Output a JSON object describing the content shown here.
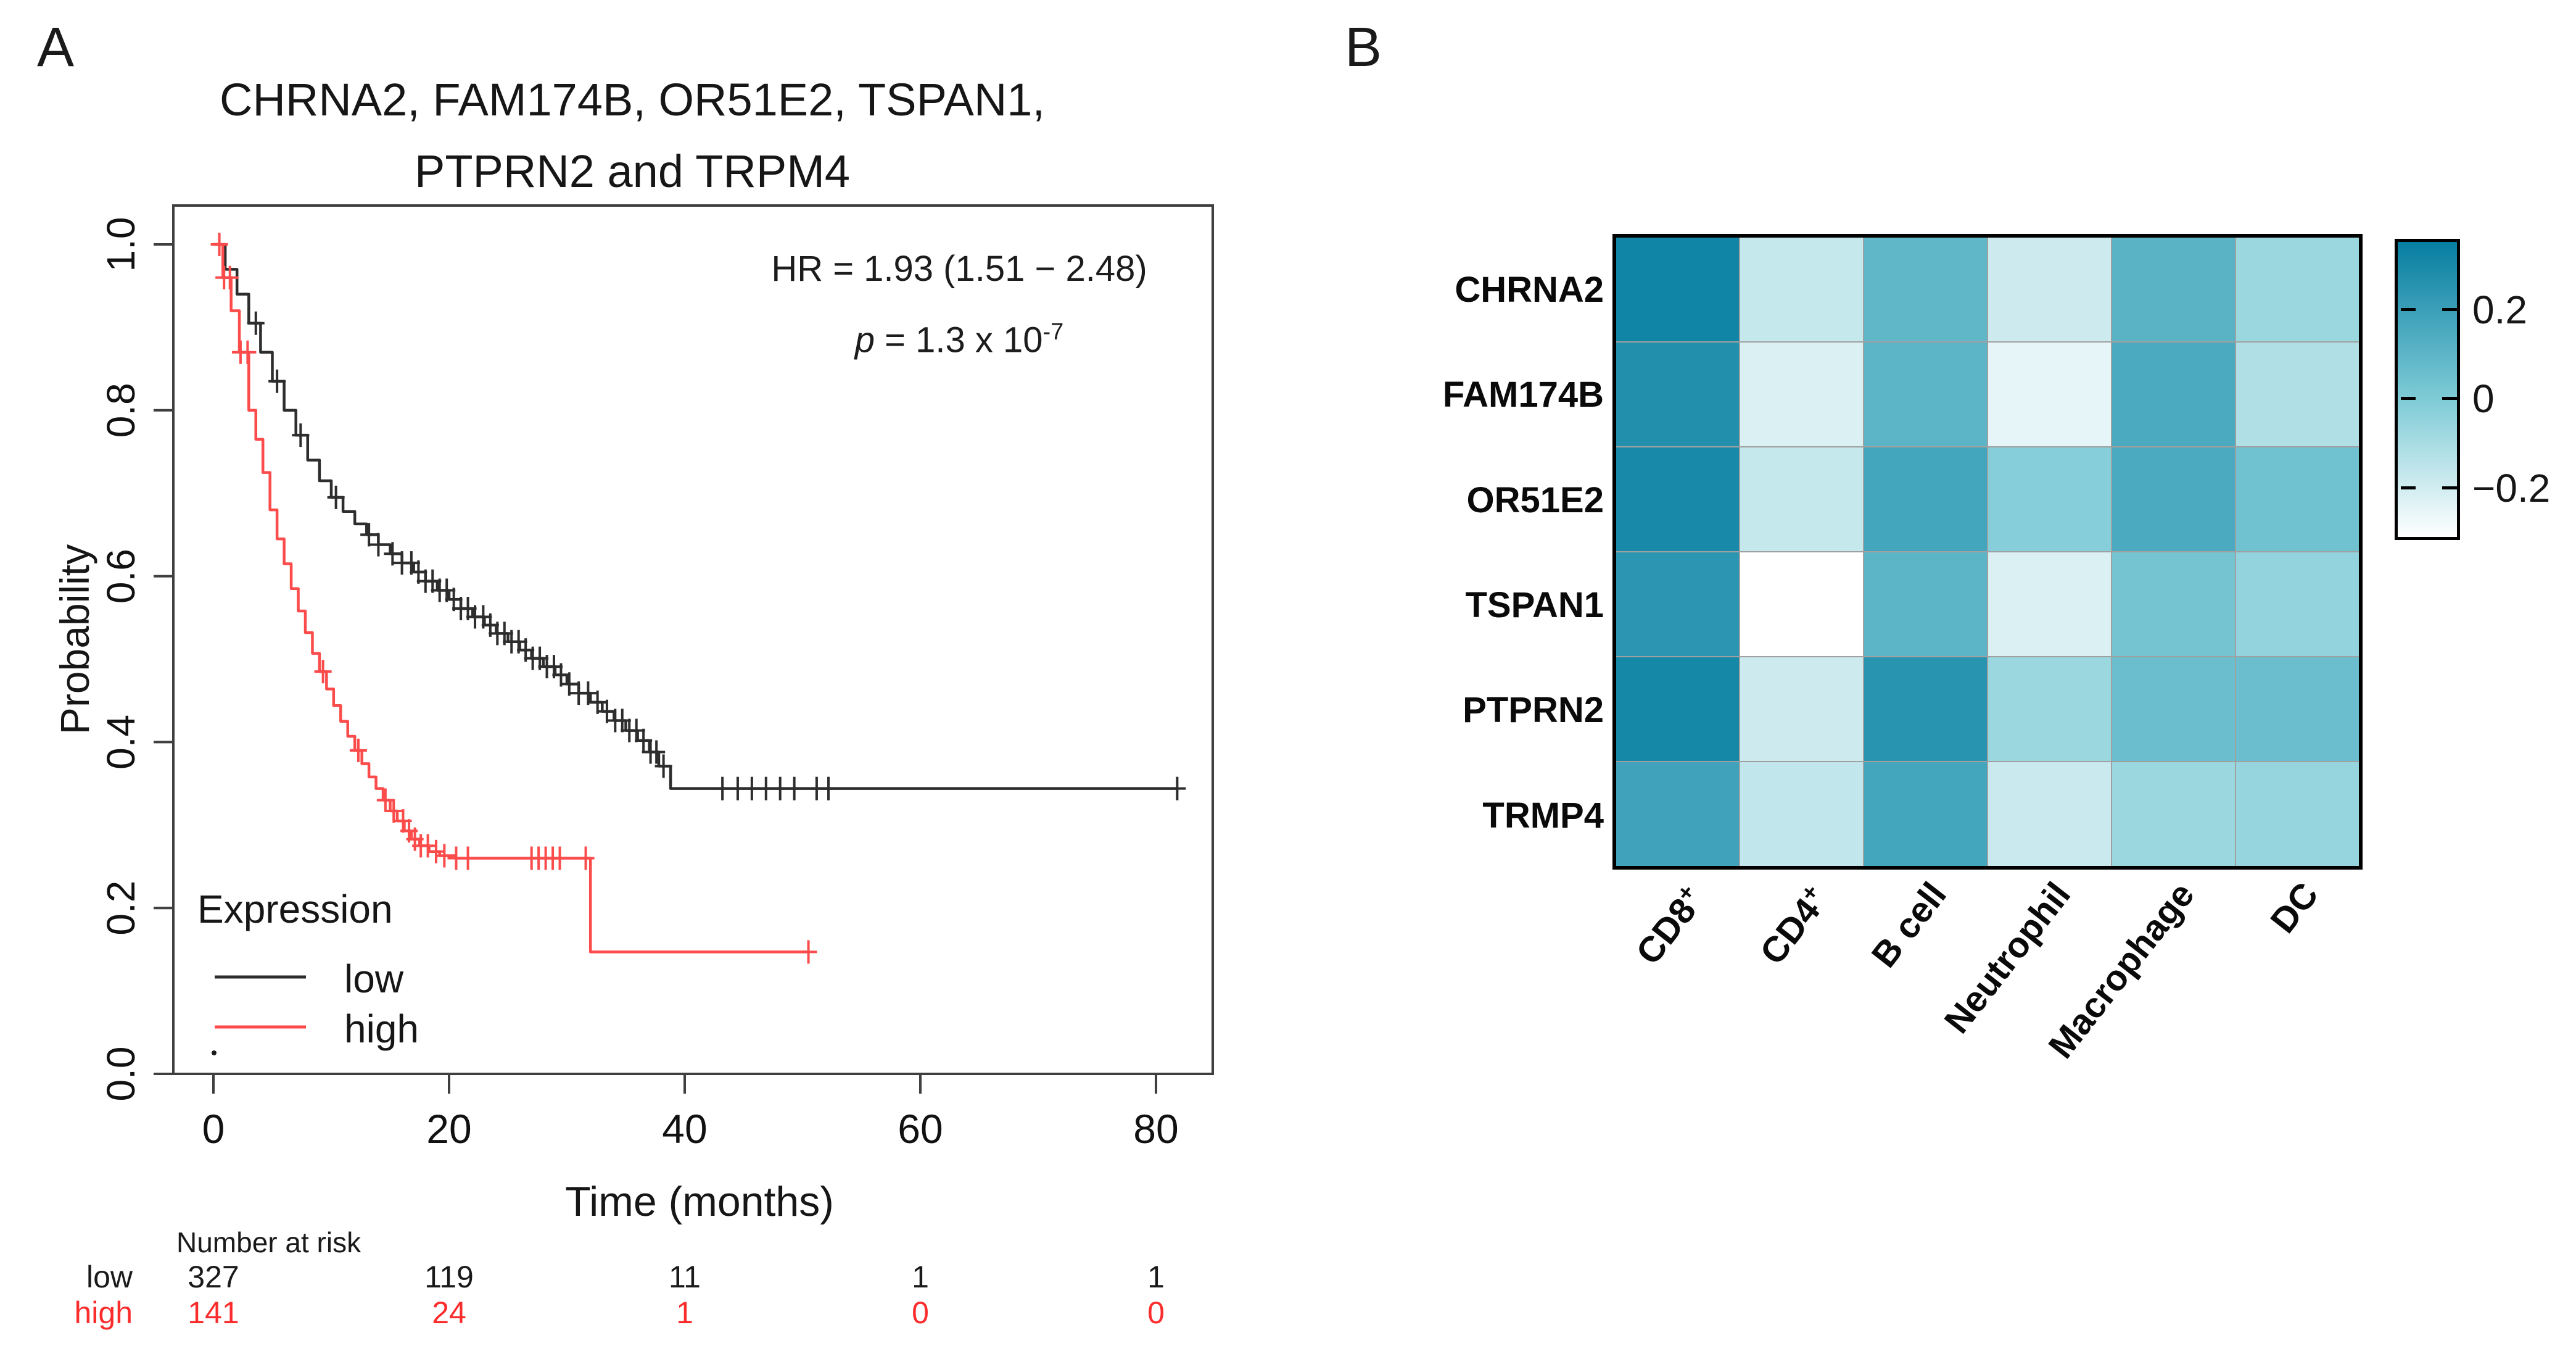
{
  "figure": {
    "panel_a_label": "A",
    "panel_b_label": "B"
  },
  "colors": {
    "curve_low": "#2d2d2d",
    "curve_high": "#fb4b4b",
    "risk_low_text": "#1a1a1a",
    "risk_high_text": "#fa2c2c",
    "axis": "#3f3f3f",
    "text": "#111111",
    "heatmap_grid": "#a0a0a0",
    "heatmap_border": "#000000"
  },
  "panel_a": {
    "title_line1": "CHRNA2, FAM174B, OR51E2, TSPAN1,",
    "title_line2": "PTPRN2 and TRPM4",
    "annotation": {
      "hr": "HR = 1.93 (1.51 − 2.48)",
      "p_label": "p",
      "p_value": " = 1.3 x 10",
      "p_exponent": "-7"
    },
    "ylabel": "Probability",
    "xlabel": "Time (months)",
    "legend": {
      "title": "Expression",
      "items": [
        {
          "label": "low",
          "color": "#2d2d2d"
        },
        {
          "label": "high",
          "color": "#fb4b4b"
        }
      ]
    },
    "risk_table": {
      "title": "Number at risk",
      "rows": [
        {
          "name": "low",
          "color": "#1a1a1a",
          "values": [
            "327",
            "119",
            "11",
            "1",
            "1"
          ]
        },
        {
          "name": "high",
          "color": "#fa2c2c",
          "values": [
            "141",
            "24",
            "1",
            "0",
            "0"
          ]
        }
      ]
    }
  },
  "chart_data": [
    {
      "type": "line",
      "subtype": "kaplan-meier-step",
      "title": "CHRNA2, FAM174B, OR51E2, TSPAN1, PTPRN2 and TRPM4",
      "xlabel": "Time (months)",
      "ylabel": "Probability",
      "xlim": [
        0,
        85
      ],
      "ylim": [
        0,
        1.05
      ],
      "x_ticks": [
        "0",
        "20",
        "40",
        "60",
        "80"
      ],
      "x_tick_values": [
        0,
        20,
        40,
        60,
        80
      ],
      "y_ticks": [
        "1.0",
        "0.8",
        "0.6",
        "0.4",
        "0.2",
        "0.0"
      ],
      "y_tick_values": [
        1.0,
        0.8,
        0.6,
        0.4,
        0.2,
        0.0
      ],
      "grid": false,
      "legend_position": "bottom-left",
      "hr_annotation": "HR = 1.93 (1.51 − 2.48)",
      "p_annotation": "p = 1.3 x 10^-7",
      "series": [
        {
          "name": "low",
          "color": "#2d2d2d",
          "steps": [
            [
              0,
              1
            ],
            [
              1,
              0.97
            ],
            [
              2,
              0.94
            ],
            [
              3,
              0.905
            ],
            [
              4,
              0.87
            ],
            [
              5,
              0.835
            ],
            [
              6,
              0.8
            ],
            [
              7,
              0.77
            ],
            [
              8,
              0.74
            ],
            [
              9,
              0.715
            ],
            [
              10,
              0.695
            ],
            [
              11,
              0.678
            ],
            [
              12,
              0.663
            ],
            [
              13,
              0.65
            ],
            [
              14,
              0.638
            ],
            [
              15,
              0.627
            ],
            [
              16,
              0.616
            ],
            [
              17,
              0.605
            ],
            [
              18,
              0.594
            ],
            [
              19,
              0.583
            ],
            [
              20,
              0.572
            ],
            [
              21,
              0.561
            ],
            [
              22,
              0.551
            ],
            [
              23,
              0.541
            ],
            [
              24,
              0.531
            ],
            [
              25,
              0.521
            ],
            [
              26,
              0.511
            ],
            [
              27,
              0.501
            ],
            [
              28,
              0.491
            ],
            [
              29,
              0.481
            ],
            [
              30,
              0.47
            ],
            [
              31,
              0.459
            ],
            [
              32,
              0.448
            ],
            [
              33,
              0.437
            ],
            [
              34,
              0.426
            ],
            [
              35,
              0.414
            ],
            [
              36,
              0.402
            ],
            [
              37,
              0.388
            ],
            [
              37.8,
              0.371
            ],
            [
              38.8,
              0.344
            ],
            [
              81.8,
              0.344
            ]
          ],
          "censor_times": [
            3.6,
            5.4,
            7.4,
            10.4,
            13.2,
            14.0,
            15.2,
            16.0,
            16.8,
            17.4,
            18.0,
            18.6,
            19.2,
            19.8,
            20.4,
            21.0,
            21.6,
            22.2,
            22.9,
            23.5,
            24.1,
            24.7,
            25.3,
            25.9,
            26.5,
            27.1,
            27.7,
            28.3,
            28.9,
            29.5,
            30.2,
            31.0,
            31.8,
            32.6,
            33.4,
            34.1,
            34.7,
            35.3,
            35.9,
            36.5,
            37.1,
            37.6,
            38.2,
            43.2,
            44.5,
            45.7,
            46.9,
            48.1,
            49.3,
            51.2,
            52.2,
            81.8
          ]
        },
        {
          "name": "high",
          "color": "#fb4b4b",
          "steps": [
            [
              0,
              1
            ],
            [
              0.8,
              0.96
            ],
            [
              1.5,
              0.92
            ],
            [
              2.2,
              0.87
            ],
            [
              3,
              0.8
            ],
            [
              3.6,
              0.765
            ],
            [
              4.2,
              0.725
            ],
            [
              4.8,
              0.68
            ],
            [
              5.4,
              0.645
            ],
            [
              6,
              0.615
            ],
            [
              6.6,
              0.585
            ],
            [
              7.2,
              0.558
            ],
            [
              7.8,
              0.532
            ],
            [
              8.4,
              0.507
            ],
            [
              9,
              0.485
            ],
            [
              9.6,
              0.464
            ],
            [
              10.2,
              0.444
            ],
            [
              10.8,
              0.425
            ],
            [
              11.4,
              0.407
            ],
            [
              12,
              0.39
            ],
            [
              12.6,
              0.374
            ],
            [
              13.2,
              0.358
            ],
            [
              13.8,
              0.344
            ],
            [
              14.4,
              0.33
            ],
            [
              15,
              0.317
            ],
            [
              15.6,
              0.305
            ],
            [
              16.2,
              0.293
            ],
            [
              16.8,
              0.283
            ],
            [
              17.5,
              0.275
            ],
            [
              18.3,
              0.268
            ],
            [
              19.2,
              0.263
            ],
            [
              20.5,
              0.26
            ],
            [
              32,
              0.26
            ],
            [
              32,
              0.147
            ],
            [
              50.5,
              0.147
            ]
          ],
          "censor_times": [
            0.5,
            0.9,
            1.4,
            2.3,
            2.9,
            9.3,
            12.3,
            14.6,
            15.3,
            16.1,
            16.6,
            17.1,
            17.6,
            18.2,
            18.9,
            19.6,
            20.6,
            21.6,
            27.0,
            27.6,
            28.2,
            28.8,
            29.4,
            31.6,
            50.5
          ]
        }
      ],
      "number_at_risk": {
        "title": "Number at risk",
        "times": [
          0,
          20,
          40,
          60,
          80
        ],
        "rows": [
          {
            "name": "low",
            "values": [
              327,
              119,
              11,
              1,
              1
            ]
          },
          {
            "name": "high",
            "values": [
              141,
              24,
              1,
              0,
              0
            ]
          }
        ]
      }
    },
    {
      "type": "heatmap",
      "rows": [
        "CHRNA2",
        "FAM174B",
        "OR51E2",
        "TSPAN1",
        "PTPRN2",
        "TRMP4"
      ],
      "columns": [
        "CD8+",
        "CD4+",
        "B cell",
        "Neutrophil",
        "Macrophage",
        "DC"
      ],
      "values": [
        [
          0.32,
          -0.17,
          0.09,
          -0.19,
          0.11,
          -0.07
        ],
        [
          0.27,
          -0.22,
          0.1,
          -0.25,
          0.15,
          -0.12
        ],
        [
          0.3,
          -0.17,
          0.17,
          -0.02,
          0.15,
          0.04
        ],
        [
          0.24,
          -0.31,
          0.1,
          -0.22,
          0.03,
          -0.05
        ],
        [
          0.31,
          -0.19,
          0.25,
          -0.07,
          0.06,
          0.06
        ],
        [
          0.18,
          -0.16,
          0.17,
          -0.18,
          -0.07,
          -0.06
        ]
      ],
      "colorbar": {
        "ticks": [
          "0.2",
          "0",
          "−0.2"
        ],
        "tick_values": [
          0.2,
          0,
          -0.2
        ],
        "domain": [
          -0.31,
          0.35
        ],
        "stops": [
          {
            "v": -0.31,
            "color": "#ffffff"
          },
          {
            "v": 0,
            "color": "#7ecbd6"
          },
          {
            "v": 0.35,
            "color": "#077ea1"
          }
        ]
      }
    }
  ]
}
